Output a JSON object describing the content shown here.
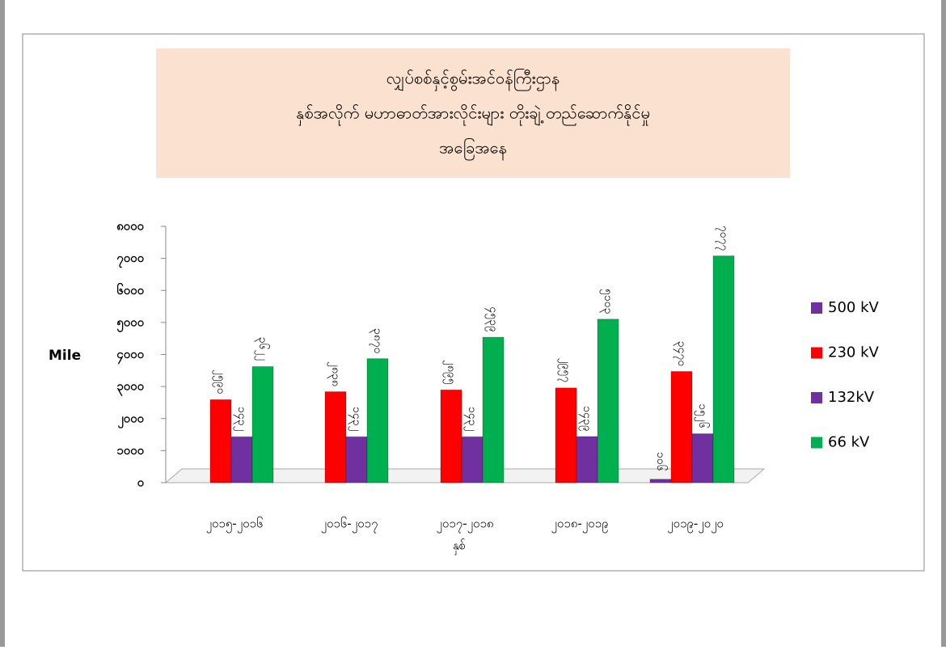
{
  "chart_data": {
    "type": "bar",
    "title": [
      "လျှပ်စစ်နှင့်စွမ်းအင်ဝန်ကြီးဌာန",
      "နှစ်အလိုက် မဟာဓာတ်အားလိုင်းများ တိုးချဲ့ တည်ဆောက်နိုင်မှု",
      "အခြေအနေ"
    ],
    "y_label": "Mile",
    "x_label": "နှစ်",
    "categories": [
      "၂၀၁၅-၂၀၁၆",
      "၂၀၁၆-၂၀၁၇",
      "၂၀၁၇-၂၀၁၈",
      "၂၀၁၈-၂၀၁၉",
      "၂၀၁၉-၂၀၂၀"
    ],
    "series": [
      {
        "name": "500 kV",
        "color": "#7030a0",
        "values": [
          null,
          null,
          null,
          null,
          106
        ],
        "value_labels": [
          null,
          null,
          null,
          null,
          "၁၀၆"
        ]
      },
      {
        "name": "230 kV",
        "color": "#ff0000",
        "values": [
          2590,
          2838,
          2895,
          2957,
          3470
        ],
        "value_labels": [
          "၂၅၉၀",
          "၂၈၃၈",
          "၂၈၉၅",
          "၂၉၅၇",
          "၃၄၇၀"
        ]
      },
      {
        "name": "132kV",
        "color": "#7030a0",
        "values": [
          1432,
          1432,
          1432,
          1439,
          1526
        ],
        "value_labels": [
          "၁၄၃၂",
          "၁၄၃၂",
          "၁၄၃၂",
          "၁၄၃၉",
          "၁၅၂၆"
        ]
      },
      {
        "name": "66 kV",
        "color": "#00b050",
        "values": [
          3622,
          3870,
          4539,
          5103,
          7077
        ],
        "value_labels": [
          "၃၆၂၂",
          "၃၈၇၀",
          "၄၅၃၉",
          "၅၁၀၃",
          "၇၀၇၇"
        ]
      }
    ],
    "ylim": [
      0,
      8000
    ],
    "yticks": [
      {
        "value": 0,
        "label": "၀"
      },
      {
        "value": 1000,
        "label": "၁၀၀၀"
      },
      {
        "value": 2000,
        "label": "၂၀၀၀"
      },
      {
        "value": 3000,
        "label": "၃၀၀၀"
      },
      {
        "value": 4000,
        "label": "၄၀၀၀"
      },
      {
        "value": 5000,
        "label": "၅၀၀၀"
      },
      {
        "value": 6000,
        "label": "၆၀၀၀"
      },
      {
        "value": 7000,
        "label": "၇၀၀၀"
      },
      {
        "value": 8000,
        "label": "၈၀၀၀"
      }
    ],
    "grid": false,
    "legend": "right"
  }
}
